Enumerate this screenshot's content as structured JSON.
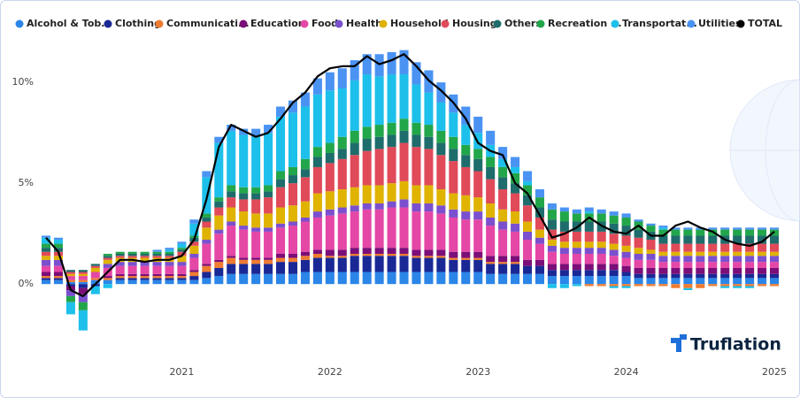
{
  "chart_data": {
    "type": "bar",
    "stacked": true,
    "brand": "Truflation",
    "categories": [
      null,
      null,
      null,
      null,
      null,
      null,
      null,
      null,
      null,
      null,
      null,
      "2021",
      null,
      null,
      null,
      null,
      null,
      null,
      null,
      null,
      null,
      null,
      null,
      "2022",
      null,
      null,
      null,
      null,
      null,
      null,
      null,
      null,
      null,
      null,
      null,
      "2023",
      null,
      null,
      null,
      null,
      null,
      null,
      null,
      null,
      null,
      null,
      null,
      "2024",
      null,
      null,
      null,
      null,
      null,
      null,
      null,
      null,
      null,
      null,
      null,
      "2025"
    ],
    "ylim": [
      -3.5,
      12.2
    ],
    "yticks": [
      {
        "value": 0,
        "label": "0%"
      },
      {
        "value": 5,
        "label": "5%"
      },
      {
        "value": 10,
        "label": "10%"
      }
    ],
    "legend": "top",
    "series": [
      {
        "name": "Alcohol & Tob...",
        "color": "#2b86e8",
        "values": [
          0.2,
          0.2,
          0.1,
          0.1,
          0.2,
          0.2,
          0.2,
          0.2,
          0.2,
          0.2,
          0.2,
          0.2,
          0.2,
          0.3,
          0.4,
          0.5,
          0.5,
          0.5,
          0.5,
          0.5,
          0.5,
          0.6,
          0.6,
          0.6,
          0.6,
          0.6,
          0.6,
          0.6,
          0.6,
          0.6,
          0.6,
          0.6,
          0.6,
          0.6,
          0.6,
          0.6,
          0.5,
          0.5,
          0.5,
          0.5,
          0.5,
          0.4,
          0.4,
          0.4,
          0.4,
          0.4,
          0.4,
          0.4,
          0.3,
          0.3,
          0.3,
          0.3,
          0.3,
          0.3,
          0.3,
          0.3,
          0.3,
          0.3,
          0.3,
          0.3
        ]
      },
      {
        "name": "Clothing",
        "color": "#1a2896",
        "values": [
          0.1,
          0.1,
          -0.1,
          -0.2,
          -0.1,
          0.0,
          0.1,
          0.1,
          0.1,
          0.1,
          0.1,
          0.1,
          0.2,
          0.3,
          0.4,
          0.5,
          0.5,
          0.5,
          0.5,
          0.6,
          0.6,
          0.6,
          0.7,
          0.7,
          0.7,
          0.8,
          0.8,
          0.8,
          0.8,
          0.8,
          0.7,
          0.7,
          0.7,
          0.6,
          0.6,
          0.6,
          0.5,
          0.5,
          0.5,
          0.4,
          0.4,
          0.3,
          0.3,
          0.3,
          0.3,
          0.3,
          0.3,
          0.2,
          0.2,
          0.2,
          0.2,
          0.2,
          0.2,
          0.2,
          0.2,
          0.2,
          0.2,
          0.2,
          0.2,
          0.2
        ]
      },
      {
        "name": "Communicati...",
        "color": "#ef7b30",
        "values": [
          0.1,
          0.1,
          0.1,
          0.1,
          0.1,
          0.1,
          0.1,
          0.1,
          0.1,
          0.1,
          0.1,
          0.1,
          0.2,
          0.3,
          0.3,
          0.3,
          0.2,
          0.2,
          0.2,
          0.2,
          0.2,
          0.2,
          0.2,
          0.1,
          0.1,
          0.1,
          0.1,
          0.1,
          0.1,
          0.1,
          0.1,
          0.1,
          0.1,
          0.1,
          0.1,
          0.1,
          0.1,
          0.1,
          0.1,
          0.0,
          0.0,
          0.0,
          0.0,
          0.0,
          -0.1,
          -0.1,
          -0.1,
          -0.1,
          -0.1,
          -0.1,
          -0.1,
          -0.2,
          -0.2,
          -0.2,
          -0.1,
          -0.1,
          -0.1,
          -0.1,
          -0.1,
          -0.1
        ]
      },
      {
        "name": "Education",
        "color": "#7b0e78",
        "values": [
          0.2,
          0.2,
          -0.2,
          -0.3,
          0.0,
          0.1,
          0.1,
          0.1,
          0.1,
          0.1,
          0.1,
          0.1,
          0.1,
          0.1,
          0.1,
          0.1,
          0.1,
          0.1,
          0.1,
          0.2,
          0.2,
          0.2,
          0.2,
          0.3,
          0.3,
          0.3,
          0.3,
          0.3,
          0.3,
          0.3,
          0.3,
          0.3,
          0.3,
          0.3,
          0.3,
          0.3,
          0.3,
          0.3,
          0.3,
          0.3,
          0.3,
          0.3,
          0.3,
          0.3,
          0.3,
          0.3,
          0.3,
          0.3,
          0.3,
          0.3,
          0.3,
          0.3,
          0.3,
          0.3,
          0.3,
          0.3,
          0.3,
          0.3,
          0.3,
          0.3
        ]
      },
      {
        "name": "Food",
        "color": "#e447a6",
        "values": [
          0.3,
          0.3,
          0.2,
          0.2,
          0.3,
          0.4,
          0.4,
          0.4,
          0.4,
          0.4,
          0.4,
          0.4,
          0.6,
          1.0,
          1.3,
          1.5,
          1.4,
          1.3,
          1.3,
          1.3,
          1.4,
          1.5,
          1.6,
          1.7,
          1.8,
          1.8,
          1.9,
          1.9,
          2.0,
          2.0,
          1.9,
          1.9,
          1.8,
          1.7,
          1.6,
          1.6,
          1.5,
          1.3,
          1.2,
          1.0,
          0.8,
          0.6,
          0.5,
          0.5,
          0.5,
          0.5,
          0.4,
          0.4,
          0.4,
          0.4,
          0.3,
          0.3,
          0.3,
          0.3,
          0.3,
          0.3,
          0.3,
          0.3,
          0.3,
          0.3
        ]
      },
      {
        "name": "Health",
        "color": "#7a50cf",
        "values": [
          0.3,
          0.3,
          -0.3,
          -0.4,
          0.0,
          0.2,
          0.2,
          0.2,
          0.2,
          0.2,
          0.2,
          0.2,
          0.2,
          0.2,
          0.2,
          0.2,
          0.2,
          0.2,
          0.2,
          0.2,
          0.2,
          0.2,
          0.3,
          0.3,
          0.3,
          0.3,
          0.3,
          0.3,
          0.3,
          0.4,
          0.4,
          0.4,
          0.4,
          0.4,
          0.4,
          0.4,
          0.4,
          0.4,
          0.4,
          0.4,
          0.3,
          0.3,
          0.3,
          0.3,
          0.3,
          0.3,
          0.3,
          0.3,
          0.3,
          0.3,
          0.3,
          0.3,
          0.3,
          0.3,
          0.3,
          0.3,
          0.3,
          0.3,
          0.3,
          0.3
        ]
      },
      {
        "name": "Household",
        "color": "#dfb300",
        "values": [
          0.2,
          0.2,
          0.1,
          0.1,
          0.2,
          0.2,
          0.2,
          0.2,
          0.2,
          0.2,
          0.2,
          0.3,
          0.4,
          0.6,
          0.7,
          0.7,
          0.7,
          0.7,
          0.7,
          0.8,
          0.8,
          0.8,
          0.9,
          0.9,
          0.9,
          0.9,
          0.9,
          0.9,
          0.9,
          0.9,
          0.9,
          0.9,
          0.8,
          0.8,
          0.8,
          0.7,
          0.7,
          0.6,
          0.6,
          0.5,
          0.4,
          0.3,
          0.3,
          0.3,
          0.3,
          0.3,
          0.3,
          0.3,
          0.3,
          0.2,
          0.2,
          0.2,
          0.2,
          0.2,
          0.2,
          0.2,
          0.2,
          0.2,
          0.2,
          0.2
        ]
      },
      {
        "name": "Housing",
        "color": "#e04a59",
        "values": [
          0.2,
          0.2,
          0.1,
          0.1,
          0.1,
          0.1,
          0.1,
          0.1,
          0.1,
          0.1,
          0.1,
          0.2,
          0.2,
          0.3,
          0.4,
          0.5,
          0.6,
          0.7,
          0.8,
          1.0,
          1.1,
          1.2,
          1.3,
          1.4,
          1.5,
          1.6,
          1.7,
          1.8,
          1.8,
          1.9,
          1.9,
          1.8,
          1.7,
          1.6,
          1.4,
          1.3,
          1.2,
          1.0,
          0.9,
          0.8,
          0.6,
          0.5,
          0.5,
          0.5,
          0.5,
          0.5,
          0.5,
          0.5,
          0.5,
          0.5,
          0.4,
          0.4,
          0.4,
          0.4,
          0.4,
          0.4,
          0.4,
          0.4,
          0.4,
          0.4
        ]
      },
      {
        "name": "Others",
        "color": "#1e6c6c",
        "values": [
          0.2,
          0.2,
          0.1,
          0.1,
          0.1,
          0.1,
          0.1,
          0.1,
          0.1,
          0.1,
          0.1,
          0.1,
          0.2,
          0.2,
          0.3,
          0.3,
          0.3,
          0.3,
          0.3,
          0.4,
          0.4,
          0.4,
          0.5,
          0.5,
          0.5,
          0.6,
          0.6,
          0.6,
          0.6,
          0.6,
          0.6,
          0.6,
          0.6,
          0.6,
          0.6,
          0.6,
          0.6,
          0.6,
          0.5,
          0.5,
          0.5,
          0.5,
          0.5,
          0.5,
          0.5,
          0.5,
          0.5,
          0.5,
          0.4,
          0.4,
          0.4,
          0.4,
          0.4,
          0.4,
          0.4,
          0.4,
          0.4,
          0.4,
          0.4,
          0.4
        ]
      },
      {
        "name": "Recreation ...",
        "color": "#22a64a",
        "values": [
          0.2,
          0.2,
          -0.3,
          -0.4,
          0.0,
          0.1,
          0.1,
          0.1,
          0.1,
          0.1,
          0.1,
          0.1,
          0.1,
          0.2,
          0.2,
          0.3,
          0.3,
          0.3,
          0.3,
          0.4,
          0.4,
          0.5,
          0.5,
          0.5,
          0.6,
          0.6,
          0.6,
          0.6,
          0.6,
          0.6,
          0.6,
          0.6,
          0.6,
          0.6,
          0.5,
          0.5,
          0.5,
          0.5,
          0.5,
          0.5,
          0.5,
          0.5,
          0.5,
          0.4,
          0.4,
          0.4,
          0.4,
          0.4,
          0.4,
          0.3,
          0.3,
          0.3,
          0.3,
          0.3,
          0.3,
          0.3,
          0.3,
          0.3,
          0.3,
          0.3
        ]
      },
      {
        "name": "Transportat...",
        "color": "#1dc0ea",
        "values": [
          0.3,
          0.2,
          -0.6,
          -1.0,
          -0.4,
          -0.2,
          0.0,
          0.0,
          0.0,
          0.0,
          0.1,
          0.2,
          0.6,
          1.8,
          2.7,
          2.7,
          2.6,
          2.5,
          2.6,
          2.7,
          2.7,
          2.6,
          2.6,
          2.6,
          2.4,
          2.5,
          2.6,
          2.4,
          2.4,
          2.2,
          1.9,
          1.6,
          1.4,
          1.2,
          1.0,
          0.8,
          0.6,
          0.4,
          0.3,
          0.2,
          0.0,
          -0.2,
          -0.2,
          -0.1,
          0.1,
          0.0,
          -0.1,
          -0.1,
          0.0,
          0.0,
          0.1,
          0.0,
          -0.1,
          0.0,
          0.0,
          -0.1,
          -0.1,
          -0.1,
          0.0,
          0.0
        ]
      },
      {
        "name": "Utilities",
        "color": "#4a93f3",
        "values": [
          0.1,
          0.1,
          0.0,
          0.0,
          0.0,
          0.0,
          0.0,
          0.0,
          0.0,
          0.1,
          0.1,
          0.1,
          0.2,
          0.3,
          0.3,
          0.3,
          0.3,
          0.4,
          0.4,
          0.5,
          0.6,
          0.7,
          0.8,
          0.9,
          1.0,
          1.0,
          1.0,
          1.1,
          1.1,
          1.2,
          1.1,
          1.1,
          1.0,
          0.9,
          0.9,
          0.8,
          0.7,
          0.6,
          0.5,
          0.5,
          0.4,
          0.3,
          0.2,
          0.2,
          0.2,
          0.2,
          0.2,
          0.2,
          0.1,
          0.1,
          0.1,
          0.1,
          0.1,
          0.1,
          0.1,
          0.1,
          0.1,
          0.1,
          0.1,
          0.1
        ]
      },
      {
        "name": "TOTAL",
        "color": "#000000",
        "type": "line",
        "values": [
          2.3,
          1.6,
          -0.3,
          -0.6,
          0.0,
          0.6,
          1.2,
          1.2,
          1.1,
          1.2,
          1.2,
          1.4,
          2.2,
          4.2,
          6.8,
          7.9,
          7.6,
          7.3,
          7.5,
          8.2,
          9.0,
          9.5,
          10.3,
          10.7,
          10.8,
          10.8,
          11.3,
          10.9,
          11.1,
          11.4,
          10.8,
          10.1,
          9.6,
          9.0,
          8.2,
          7.0,
          6.6,
          6.4,
          5.0,
          4.5,
          3.4,
          2.3,
          2.5,
          2.8,
          3.3,
          2.9,
          2.6,
          2.5,
          2.9,
          2.4,
          2.4,
          2.9,
          3.1,
          2.8,
          2.6,
          2.2,
          2.0,
          1.9,
          2.1,
          2.6
        ]
      }
    ]
  }
}
